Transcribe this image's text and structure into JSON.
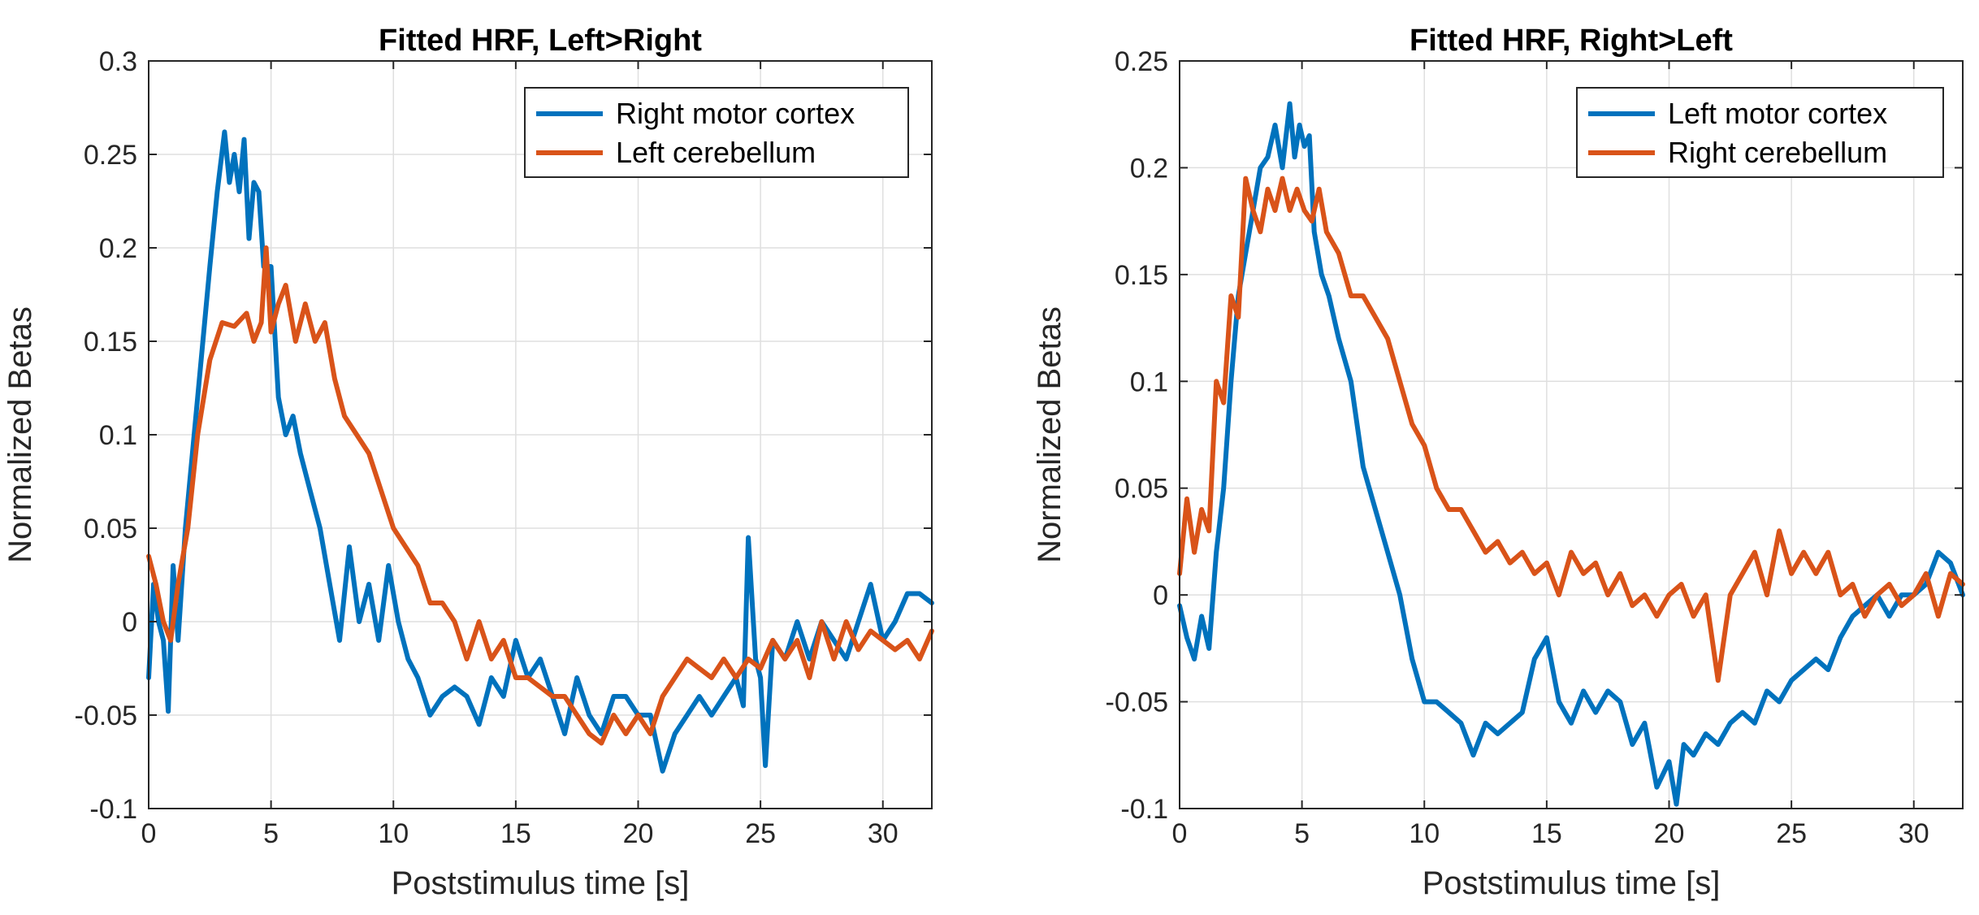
{
  "colors": {
    "blue": "#0072BD",
    "orange": "#D95319"
  },
  "chart_data": [
    {
      "type": "line",
      "title": "Fitted HRF, Left>Right",
      "xlabel": "Poststimulus time [s]",
      "ylabel": "Normalized Betas",
      "xlim": [
        0,
        32
      ],
      "ylim": [
        -0.1,
        0.3
      ],
      "xticks": [
        0,
        5,
        10,
        15,
        20,
        25,
        30
      ],
      "xtick_labels": [
        "0",
        "5",
        "10",
        "15",
        "20",
        "25",
        "30"
      ],
      "yticks": [
        -0.1,
        -0.05,
        0,
        0.05,
        0.1,
        0.15,
        0.2,
        0.25,
        0.3
      ],
      "ytick_labels": [
        "-0.1",
        "-0.05",
        "0",
        "0.05",
        "0.1",
        "0.15",
        "0.2",
        "0.25",
        "0.3"
      ],
      "grid": true,
      "legend_position": "top-right",
      "series": [
        {
          "name": "Right motor cortex",
          "color": "#0072BD",
          "x": [
            0,
            0.2,
            0.4,
            0.6,
            0.8,
            1,
            1.2,
            1.5,
            2,
            2.5,
            2.8,
            3.1,
            3.3,
            3.5,
            3.7,
            3.9,
            4.1,
            4.3,
            4.5,
            4.7,
            5,
            5.3,
            5.6,
            5.9,
            6.2,
            6.6,
            7,
            7.4,
            7.8,
            8.2,
            8.6,
            9,
            9.4,
            9.8,
            10.2,
            10.6,
            11,
            11.5,
            12,
            12.5,
            13,
            13.5,
            14,
            14.5,
            15,
            15.5,
            16,
            16.5,
            17,
            17.5,
            18,
            18.5,
            19,
            19.5,
            20,
            20.5,
            21,
            21.5,
            22,
            22.5,
            23,
            23.5,
            24,
            24.3,
            24.5,
            24.8,
            25,
            25.2,
            25.5,
            26,
            26.5,
            27,
            27.5,
            28,
            28.5,
            29,
            29.5,
            30,
            30.5,
            31,
            31.5,
            32
          ],
          "y": [
            -0.03,
            0.02,
            0.0,
            -0.01,
            -0.048,
            0.03,
            -0.01,
            0.05,
            0.12,
            0.19,
            0.23,
            0.262,
            0.235,
            0.25,
            0.23,
            0.258,
            0.205,
            0.235,
            0.23,
            0.19,
            0.19,
            0.12,
            0.1,
            0.11,
            0.09,
            0.07,
            0.05,
            0.02,
            -0.01,
            0.04,
            0.0,
            0.02,
            -0.01,
            0.03,
            0.0,
            -0.02,
            -0.03,
            -0.05,
            -0.04,
            -0.035,
            -0.04,
            -0.055,
            -0.03,
            -0.04,
            -0.01,
            -0.03,
            -0.02,
            -0.04,
            -0.06,
            -0.03,
            -0.05,
            -0.06,
            -0.04,
            -0.04,
            -0.05,
            -0.05,
            -0.08,
            -0.06,
            -0.05,
            -0.04,
            -0.05,
            -0.04,
            -0.03,
            -0.045,
            0.045,
            -0.02,
            -0.03,
            -0.077,
            -0.01,
            -0.02,
            0.0,
            -0.02,
            0.0,
            -0.01,
            -0.02,
            0.0,
            0.02,
            -0.01,
            0.0,
            0.015,
            0.015,
            0.01
          ]
        },
        {
          "name": "Left cerebellum",
          "color": "#D95319",
          "x": [
            0,
            0.3,
            0.6,
            0.9,
            1.2,
            1.6,
            2,
            2.5,
            3,
            3.5,
            4,
            4.3,
            4.6,
            4.8,
            5,
            5.3,
            5.6,
            6,
            6.4,
            6.8,
            7.2,
            7.6,
            8,
            8.5,
            9,
            9.5,
            10,
            10.5,
            11,
            11.5,
            12,
            12.5,
            13,
            13.5,
            14,
            14.5,
            15,
            15.5,
            16,
            16.5,
            17,
            17.5,
            18,
            18.5,
            19,
            19.5,
            20,
            20.5,
            21,
            21.5,
            22,
            22.5,
            23,
            23.5,
            24,
            24.5,
            25,
            25.5,
            26,
            26.5,
            27,
            27.5,
            28,
            28.5,
            29,
            29.5,
            30,
            30.5,
            31,
            31.5,
            32
          ],
          "y": [
            0.035,
            0.02,
            0.0,
            -0.01,
            0.02,
            0.05,
            0.1,
            0.14,
            0.16,
            0.158,
            0.165,
            0.15,
            0.16,
            0.2,
            0.155,
            0.17,
            0.18,
            0.15,
            0.17,
            0.15,
            0.16,
            0.13,
            0.11,
            0.1,
            0.09,
            0.07,
            0.05,
            0.04,
            0.03,
            0.01,
            0.01,
            0.0,
            -0.02,
            0.0,
            -0.02,
            -0.01,
            -0.03,
            -0.03,
            -0.035,
            -0.04,
            -0.04,
            -0.05,
            -0.06,
            -0.065,
            -0.05,
            -0.06,
            -0.05,
            -0.06,
            -0.04,
            -0.03,
            -0.02,
            -0.025,
            -0.03,
            -0.02,
            -0.03,
            -0.02,
            -0.025,
            -0.01,
            -0.02,
            -0.01,
            -0.03,
            0.0,
            -0.02,
            0.0,
            -0.015,
            -0.005,
            -0.01,
            -0.015,
            -0.01,
            -0.02,
            -0.005
          ]
        }
      ]
    },
    {
      "type": "line",
      "title": "Fitted HRF, Right>Left",
      "xlabel": "Poststimulus time [s]",
      "ylabel": "Normalized Betas",
      "xlim": [
        0,
        32
      ],
      "ylim": [
        -0.1,
        0.25
      ],
      "xticks": [
        0,
        5,
        10,
        15,
        20,
        25,
        30
      ],
      "xtick_labels": [
        "0",
        "5",
        "10",
        "15",
        "20",
        "25",
        "30"
      ],
      "yticks": [
        -0.1,
        -0.05,
        0,
        0.05,
        0.1,
        0.15,
        0.2,
        0.25
      ],
      "ytick_labels": [
        "-0.1",
        "-0.05",
        "0",
        "0.05",
        "0.1",
        "0.15",
        "0.2",
        "0.25"
      ],
      "grid": true,
      "legend_position": "top-right",
      "series": [
        {
          "name": "Left motor cortex",
          "color": "#0072BD",
          "x": [
            0,
            0.3,
            0.6,
            0.9,
            1.2,
            1.5,
            1.8,
            2.1,
            2.4,
            2.7,
            3,
            3.3,
            3.6,
            3.9,
            4.2,
            4.5,
            4.7,
            4.9,
            5.1,
            5.3,
            5.5,
            5.8,
            6.1,
            6.5,
            7,
            7.5,
            8,
            8.5,
            9,
            9.5,
            10,
            10.5,
            11,
            11.5,
            12,
            12.5,
            13,
            13.5,
            14,
            14.5,
            15,
            15.5,
            16,
            16.5,
            17,
            17.5,
            18,
            18.5,
            19,
            19.5,
            20,
            20.3,
            20.6,
            21,
            21.5,
            22,
            22.5,
            23,
            23.5,
            24,
            24.5,
            25,
            25.5,
            26,
            26.5,
            27,
            27.5,
            28,
            28.5,
            29,
            29.5,
            30,
            30.5,
            31,
            31.5,
            32
          ],
          "y": [
            -0.005,
            -0.02,
            -0.03,
            -0.01,
            -0.025,
            0.02,
            0.05,
            0.1,
            0.14,
            0.16,
            0.18,
            0.2,
            0.205,
            0.22,
            0.2,
            0.23,
            0.205,
            0.22,
            0.21,
            0.215,
            0.17,
            0.15,
            0.14,
            0.12,
            0.1,
            0.06,
            0.04,
            0.02,
            0.0,
            -0.03,
            -0.05,
            -0.05,
            -0.055,
            -0.06,
            -0.075,
            -0.06,
            -0.065,
            -0.06,
            -0.055,
            -0.03,
            -0.02,
            -0.05,
            -0.06,
            -0.045,
            -0.055,
            -0.045,
            -0.05,
            -0.07,
            -0.06,
            -0.09,
            -0.078,
            -0.098,
            -0.07,
            -0.075,
            -0.065,
            -0.07,
            -0.06,
            -0.055,
            -0.06,
            -0.045,
            -0.05,
            -0.04,
            -0.035,
            -0.03,
            -0.035,
            -0.02,
            -0.01,
            -0.005,
            0.0,
            -0.01,
            0.0,
            0.0,
            0.005,
            0.02,
            0.015,
            0.0
          ]
        },
        {
          "name": "Right cerebellum",
          "color": "#D95319",
          "x": [
            0,
            0.3,
            0.6,
            0.9,
            1.2,
            1.5,
            1.8,
            2.1,
            2.4,
            2.7,
            3,
            3.3,
            3.6,
            3.9,
            4.2,
            4.5,
            4.8,
            5.1,
            5.4,
            5.7,
            6,
            6.5,
            7,
            7.5,
            8,
            8.5,
            9,
            9.5,
            10,
            10.5,
            11,
            11.5,
            12,
            12.5,
            13,
            13.5,
            14,
            14.5,
            15,
            15.5,
            16,
            16.5,
            17,
            17.5,
            18,
            18.5,
            19,
            19.5,
            20,
            20.5,
            21,
            21.5,
            22,
            22.5,
            23,
            23.5,
            24,
            24.5,
            25,
            25.5,
            26,
            26.5,
            27,
            27.5,
            28,
            28.5,
            29,
            29.5,
            30,
            30.5,
            31,
            31.5,
            32
          ],
          "y": [
            0.01,
            0.045,
            0.02,
            0.04,
            0.03,
            0.1,
            0.09,
            0.14,
            0.13,
            0.195,
            0.18,
            0.17,
            0.19,
            0.18,
            0.195,
            0.18,
            0.19,
            0.18,
            0.175,
            0.19,
            0.17,
            0.16,
            0.14,
            0.14,
            0.13,
            0.12,
            0.1,
            0.08,
            0.07,
            0.05,
            0.04,
            0.04,
            0.03,
            0.02,
            0.025,
            0.015,
            0.02,
            0.01,
            0.015,
            0.0,
            0.02,
            0.01,
            0.015,
            0.0,
            0.01,
            -0.005,
            0.0,
            -0.01,
            0.0,
            0.005,
            -0.01,
            0.0,
            -0.04,
            0.0,
            0.01,
            0.02,
            0.0,
            0.03,
            0.01,
            0.02,
            0.01,
            0.02,
            0.0,
            0.005,
            -0.01,
            0.0,
            0.005,
            -0.005,
            0.0,
            0.01,
            -0.01,
            0.01,
            0.005
          ]
        }
      ]
    }
  ]
}
